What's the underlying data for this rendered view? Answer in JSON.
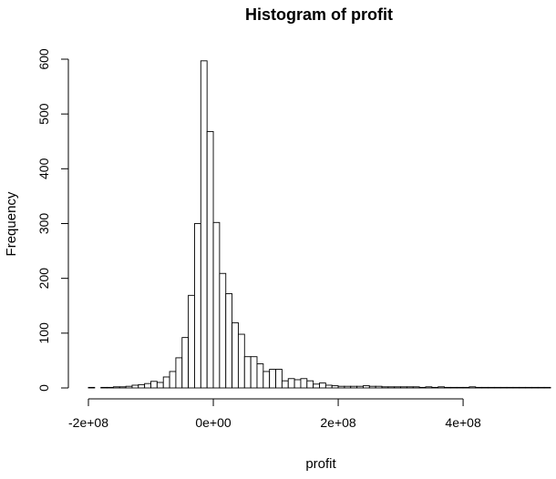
{
  "chart_data": {
    "type": "bar",
    "title": "Histogram of profit",
    "xlabel": "profit",
    "ylabel": "Frequency",
    "x_bin_width": 10000000,
    "x_start": -200000000,
    "xlim": [
      -200000000,
      540000000
    ],
    "ylim": [
      0,
      600
    ],
    "x_ticks": [
      -200000000,
      0,
      200000000,
      400000000
    ],
    "x_tick_labels": [
      "-2e+08",
      "0e+00",
      "2e+08",
      "4e+08"
    ],
    "y_ticks": [
      0,
      100,
      200,
      300,
      400,
      500,
      600
    ],
    "y_tick_labels": [
      "0",
      "100",
      "200",
      "300",
      "400",
      "500",
      "600"
    ],
    "values": [
      1,
      0,
      1,
      1,
      2,
      2,
      3,
      5,
      6,
      8,
      12,
      10,
      20,
      30,
      55,
      92,
      169,
      300,
      597,
      468,
      302,
      209,
      172,
      119,
      98,
      57,
      57,
      44,
      30,
      34,
      34,
      13,
      17,
      15,
      17,
      13,
      7,
      9,
      5,
      4,
      3,
      3,
      3,
      3,
      4,
      3,
      3,
      2,
      2,
      2,
      2,
      2,
      2,
      1,
      2,
      1,
      2,
      1,
      1,
      1,
      1,
      2,
      1,
      1,
      1,
      1,
      1,
      1,
      1,
      1,
      1,
      1,
      1,
      1
    ],
    "grid": false,
    "legend": "none"
  }
}
